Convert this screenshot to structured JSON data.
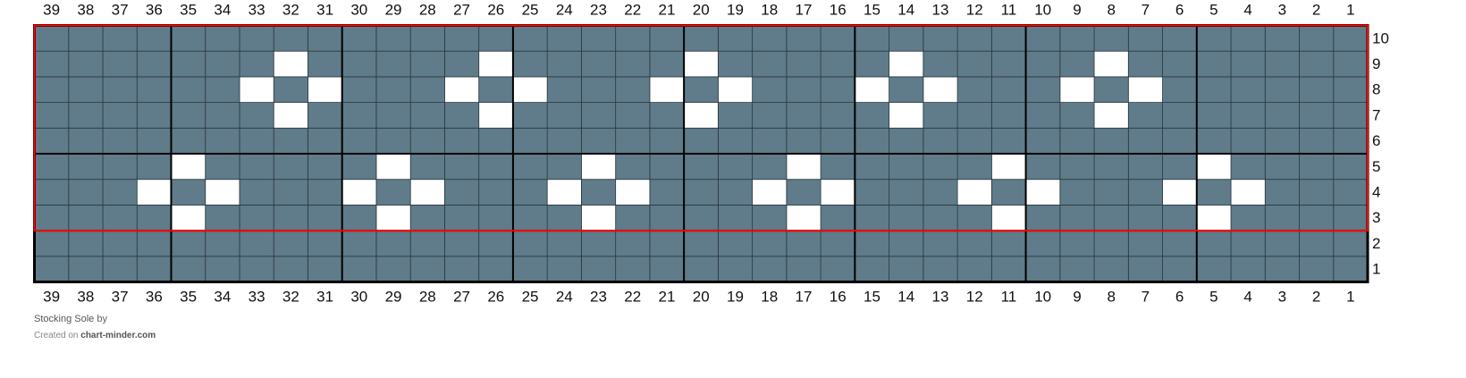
{
  "chart_data": {
    "type": "table",
    "columns": 39,
    "rows": 10,
    "column_labels_order": "right-to-left",
    "background_color": "#607b89",
    "pattern_color": "#ffffff",
    "highlight_box_color": "#ff0000",
    "highlight_rows": [
      3,
      10
    ],
    "major_grid_every": 5,
    "white_cells": {
      "9": [
        32,
        26,
        20,
        14,
        8
      ],
      "8": [
        33,
        31,
        27,
        25,
        21,
        19,
        15,
        13,
        9,
        7
      ],
      "7": [
        32,
        26,
        20,
        14,
        8
      ],
      "5": [
        35,
        29,
        23,
        17,
        11,
        5
      ],
      "4": [
        36,
        34,
        30,
        28,
        24,
        22,
        18,
        16,
        12,
        10,
        6,
        4
      ],
      "3": [
        35,
        29,
        23,
        17,
        11,
        5
      ]
    }
  },
  "footer": {
    "title": "Stocking Sole",
    "by": "by",
    "created_on": "Created on",
    "site": "chart-minder.com"
  }
}
